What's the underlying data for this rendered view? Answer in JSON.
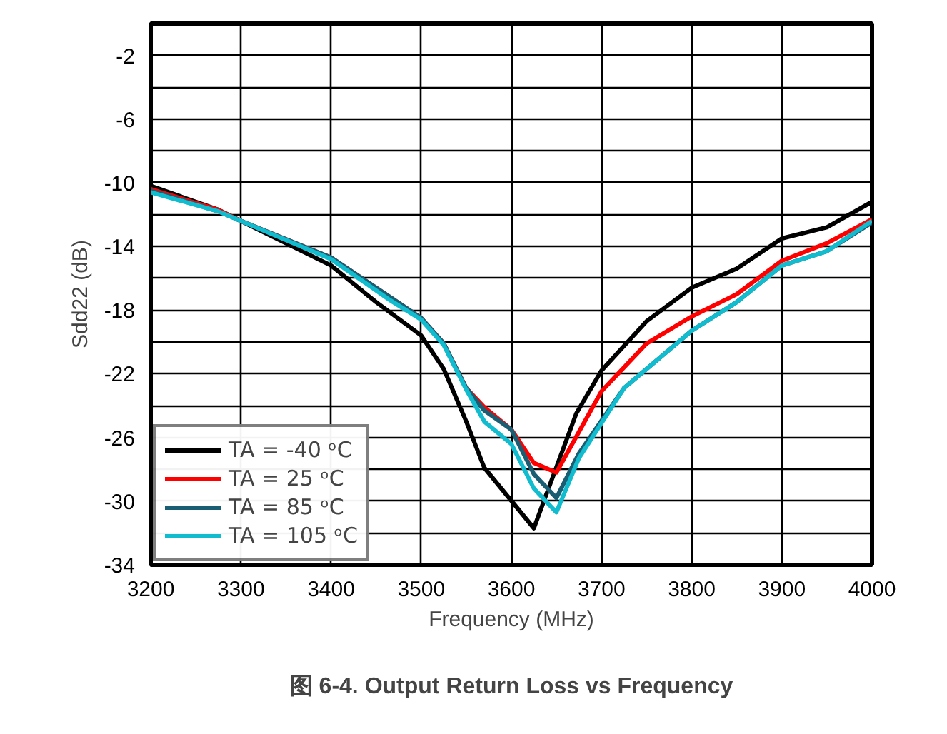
{
  "chart_data": {
    "type": "line",
    "title": "图 6-4. Output Return Loss vs Frequency",
    "xlabel": "Frequency (MHz)",
    "ylabel": "Sdd22 (dB)",
    "xlim": [
      3200,
      4000
    ],
    "xticks": [
      3200,
      3300,
      3400,
      3500,
      3600,
      3700,
      3800,
      3900,
      4000
    ],
    "ylim": [
      -34,
      0
    ],
    "yticks": [
      -34,
      {
        "value": -32,
        "label": null
      },
      -30,
      {
        "value": -28,
        "label": null
      },
      -26,
      {
        "value": -24,
        "label": null
      },
      -22,
      {
        "value": -20,
        "label": null
      },
      -18,
      {
        "value": -16,
        "label": null
      },
      -14,
      {
        "value": -12,
        "label": null
      },
      -10,
      {
        "value": -8,
        "label": null
      },
      -6,
      {
        "value": -4,
        "label": null
      },
      -2,
      {
        "value": 0,
        "label": null
      }
    ],
    "grid": true,
    "legend": "bottom left",
    "line_style": "solid",
    "marker": "none",
    "series": [
      {
        "name": "TA = -40 ᵒC",
        "color": "#000000",
        "x": [
          3200,
          3275,
          3300,
          3400,
          3450,
          3500,
          3525,
          3550,
          3570,
          3625,
          3672,
          3700,
          3750,
          3800,
          3850,
          3900,
          3950,
          4000
        ],
        "values": [
          -10.2,
          -11.7,
          -12.4,
          -15.2,
          -17.5,
          -19.6,
          -21.7,
          -25.0,
          -27.9,
          -31.7,
          -24.5,
          -21.8,
          -18.7,
          -16.6,
          -15.4,
          -13.5,
          -12.8,
          -11.2
        ]
      },
      {
        "name": "TA = 25 ᵒC",
        "color": "#ff0000",
        "x": [
          3200,
          3275,
          3300,
          3400,
          3500,
          3525,
          3550,
          3570,
          3600,
          3625,
          3650,
          3700,
          3750,
          3800,
          3850,
          3900,
          3950,
          4000
        ],
        "values": [
          -10.4,
          -11.7,
          -12.4,
          -14.7,
          -18.5,
          -20.1,
          -22.9,
          -24.1,
          -25.5,
          -27.6,
          -28.2,
          -23.1,
          -20.1,
          -18.4,
          -17.0,
          -14.9,
          -13.8,
          -12.3
        ]
      },
      {
        "name": "TA = 85 ᵒC",
        "color": "#1a5e74",
        "x": [
          3200,
          3275,
          3300,
          3400,
          3466,
          3500,
          3525,
          3550,
          3570,
          3600,
          3625,
          3650,
          3675,
          3725,
          3800,
          3850,
          3900,
          3950,
          4000
        ],
        "values": [
          -10.5,
          -11.8,
          -12.4,
          -14.7,
          -17.2,
          -18.5,
          -20.1,
          -22.9,
          -24.3,
          -25.5,
          -28.3,
          -29.8,
          -27.0,
          -22.9,
          -19.3,
          -17.5,
          -15.2,
          -14.3,
          -12.5
        ]
      },
      {
        "name": "TA = 105 ᵒC",
        "color": "#12bccf",
        "x": [
          3200,
          3275,
          3300,
          3400,
          3466,
          3500,
          3525,
          3550,
          3570,
          3600,
          3625,
          3650,
          3675,
          3725,
          3800,
          3850,
          3900,
          3950,
          4000
        ],
        "values": [
          -10.6,
          -11.8,
          -12.4,
          -14.8,
          -17.4,
          -18.6,
          -20.2,
          -23.0,
          -25.0,
          -26.4,
          -29.2,
          -30.7,
          -27.3,
          -22.9,
          -19.3,
          -17.5,
          -15.2,
          -14.3,
          -12.4
        ]
      }
    ]
  }
}
